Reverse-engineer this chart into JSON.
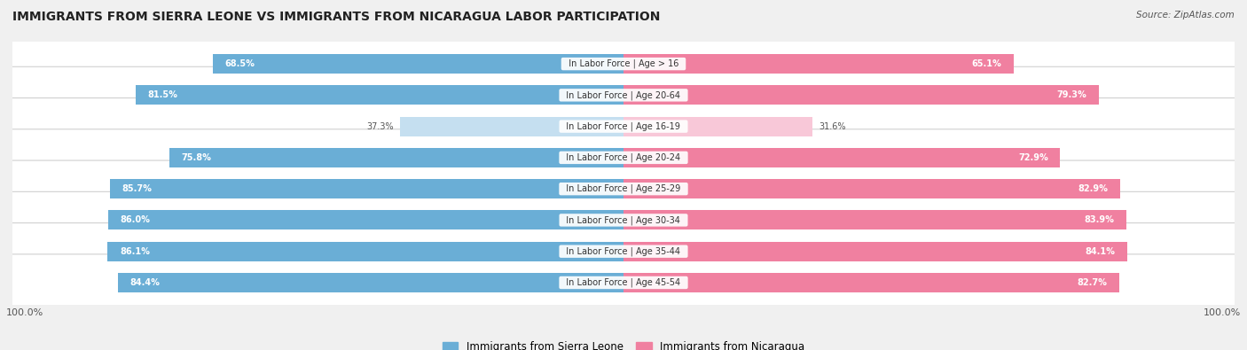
{
  "title": "IMMIGRANTS FROM SIERRA LEONE VS IMMIGRANTS FROM NICARAGUA LABOR PARTICIPATION",
  "source": "Source: ZipAtlas.com",
  "categories": [
    "In Labor Force | Age > 16",
    "In Labor Force | Age 20-64",
    "In Labor Force | Age 16-19",
    "In Labor Force | Age 20-24",
    "In Labor Force | Age 25-29",
    "In Labor Force | Age 30-34",
    "In Labor Force | Age 35-44",
    "In Labor Force | Age 45-54"
  ],
  "sierra_leone": [
    68.5,
    81.5,
    37.3,
    75.8,
    85.7,
    86.0,
    86.1,
    84.4
  ],
  "nicaragua": [
    65.1,
    79.3,
    31.6,
    72.9,
    82.9,
    83.9,
    84.1,
    82.7
  ],
  "sierra_leone_color": "#6aaed6",
  "nicaragua_color": "#f080a0",
  "sierra_leone_light": "#c5dff0",
  "nicaragua_light": "#f8c8d8",
  "bg_color": "#f0f0f0",
  "row_bg": "#ffffff",
  "max_val": 100.0,
  "bar_height": 0.62,
  "legend_sierra": "Immigrants from Sierra Leone",
  "legend_nicaragua": "Immigrants from Nicaragua"
}
